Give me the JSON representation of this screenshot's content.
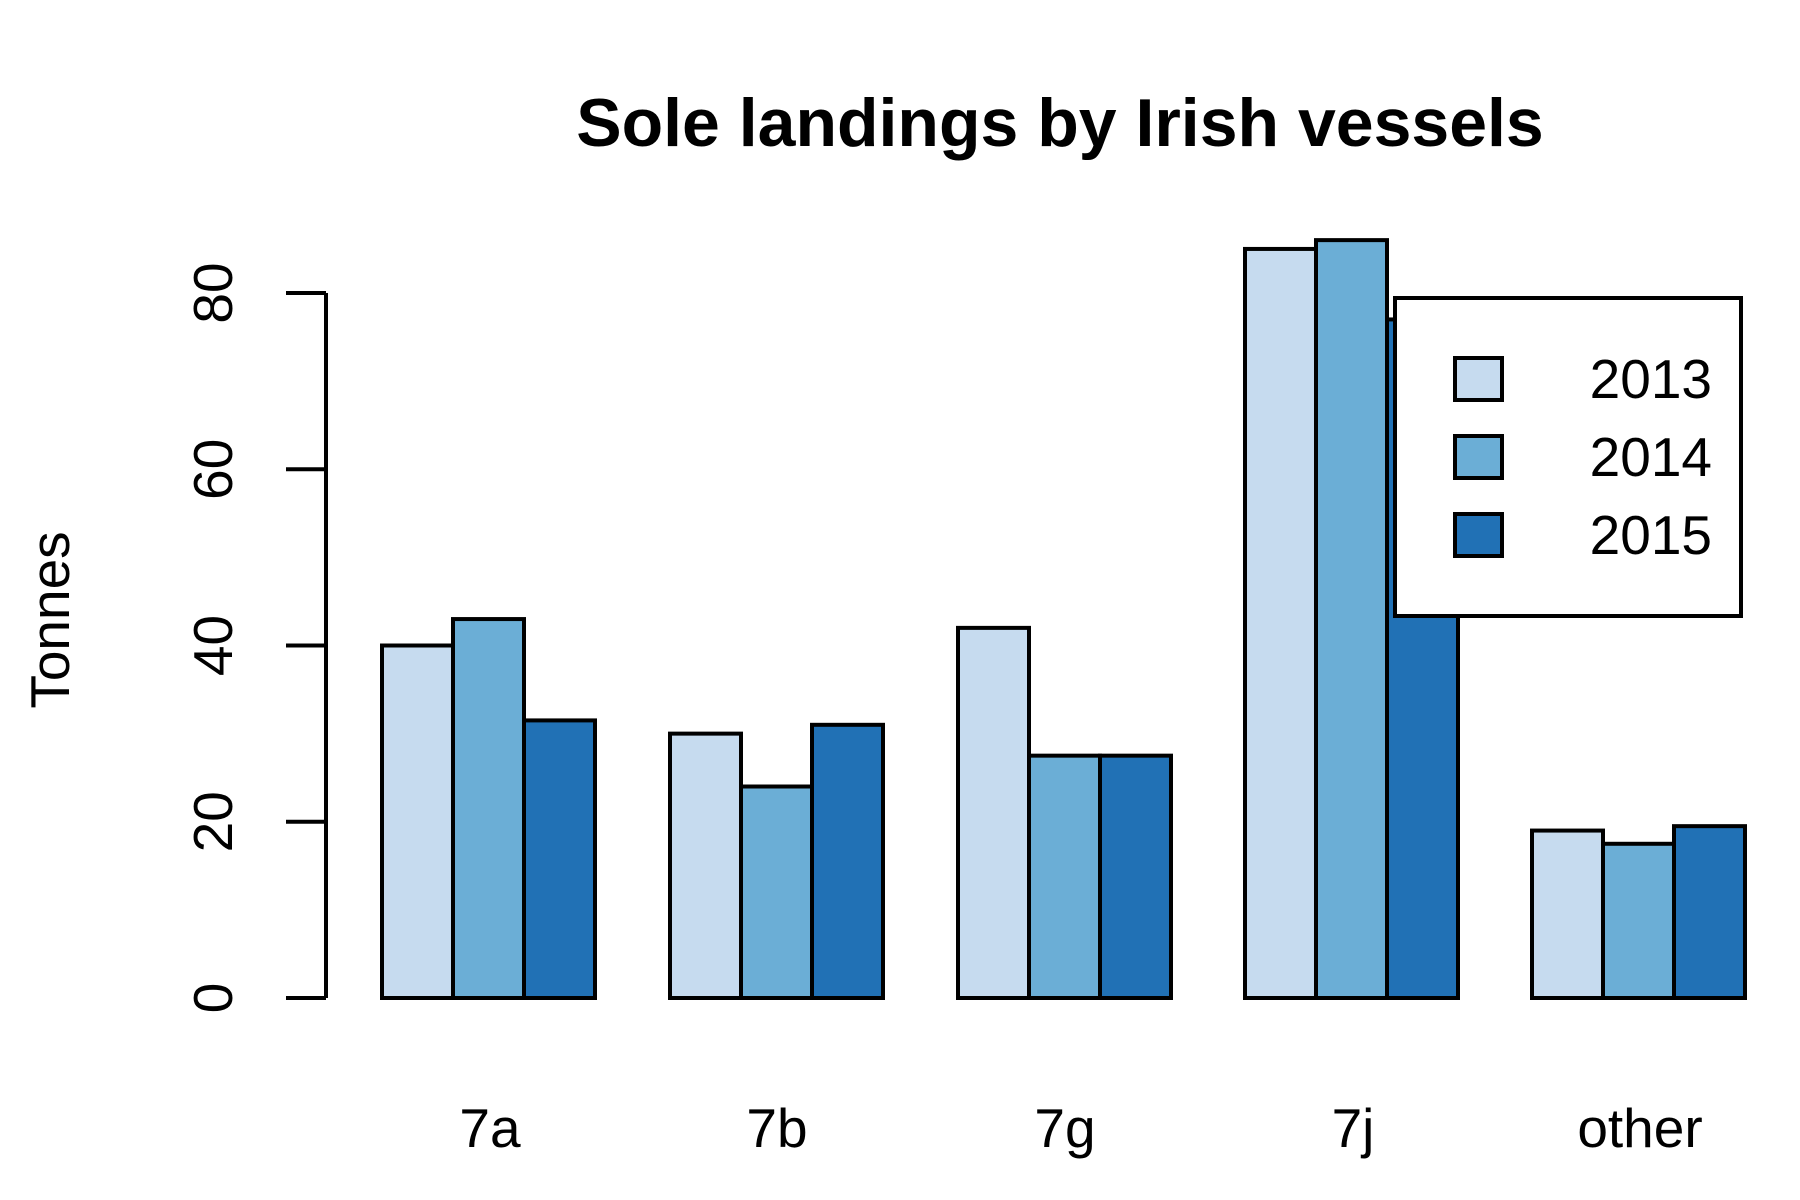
{
  "chart_data": {
    "type": "bar",
    "title": "Sole landings by Irish vessels",
    "xlabel": "",
    "ylabel": "Tonnes",
    "categories": [
      "7a",
      "7b",
      "7g",
      "7j",
      "other"
    ],
    "series": [
      {
        "name": "2013",
        "color": "#c6dbef",
        "values": [
          40,
          30,
          42,
          85,
          19
        ]
      },
      {
        "name": "2014",
        "color": "#6baed6",
        "values": [
          43,
          24,
          27.5,
          86,
          17.5
        ]
      },
      {
        "name": "2015",
        "color": "#2171b5",
        "values": [
          31.5,
          31,
          27.5,
          77,
          19.5
        ]
      }
    ],
    "ylim": [
      0,
      80
    ],
    "yticks": [
      "0",
      "20",
      "40",
      "60",
      "80"
    ],
    "legend": {
      "position": "top-right"
    },
    "grid": false,
    "grouped": true
  }
}
